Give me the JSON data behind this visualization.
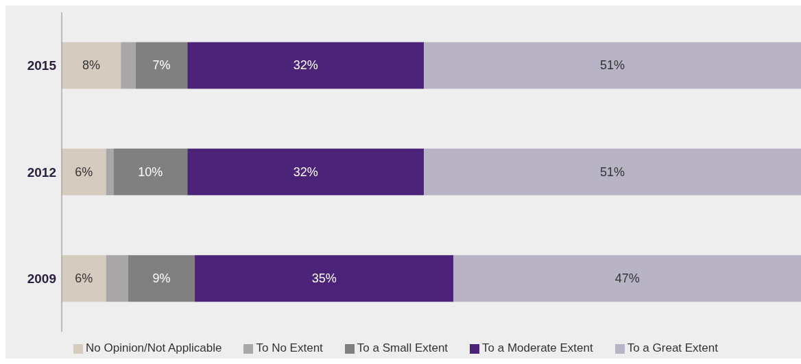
{
  "chart_data": {
    "type": "bar",
    "orientation": "horizontal",
    "stacked": true,
    "categories": [
      "2015",
      "2012",
      "2009"
    ],
    "series": [
      {
        "name": "No Opinion/Not Applicable",
        "color": "#d5cbbf",
        "values": [
          8,
          6,
          6
        ],
        "value_labels": [
          "8%",
          "6%",
          "6%"
        ]
      },
      {
        "name": "To No Extent",
        "color": "#a9a7a7",
        "values": [
          2,
          1,
          3
        ],
        "value_labels": [
          null,
          null,
          null
        ]
      },
      {
        "name": "To a Small Extent",
        "color": "#808080",
        "values": [
          7,
          10,
          9
        ],
        "value_labels": [
          "7%",
          "10%",
          "9%"
        ]
      },
      {
        "name": "To a Moderate Extent",
        "color": "#4b2378",
        "values": [
          32,
          32,
          35
        ],
        "value_labels": [
          "32%",
          "32%",
          "35%"
        ]
      },
      {
        "name": "To a Great Extent",
        "color": "#b9b3c6",
        "values": [
          51,
          51,
          47
        ],
        "value_labels": [
          "51%",
          "51%",
          "47%"
        ]
      }
    ],
    "xlim": [
      0,
      100
    ],
    "tick_labels": "y",
    "legend": "bottom",
    "grid": false
  }
}
